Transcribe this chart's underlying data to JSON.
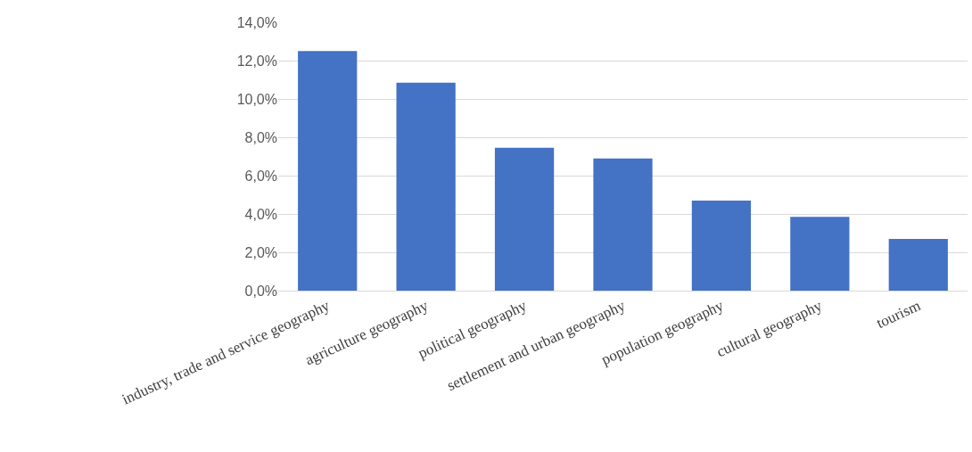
{
  "chart_data": {
    "type": "bar",
    "categories": [
      "industry, trade and service geography",
      "agriculture geography",
      "political geography",
      "settlement and urban geography",
      "population geography",
      "cultural geography",
      "tourism"
    ],
    "values": [
      12.5,
      10.85,
      7.45,
      6.9,
      4.7,
      3.85,
      2.7
    ],
    "color": "#4472c4",
    "ylim": [
      0,
      14
    ],
    "yticks": [
      {
        "value": 0,
        "label": "0,0%"
      },
      {
        "value": 2,
        "label": "2,0%"
      },
      {
        "value": 4,
        "label": "4,0%"
      },
      {
        "value": 6,
        "label": "6,0%"
      },
      {
        "value": 8,
        "label": "8,0%"
      },
      {
        "value": 10,
        "label": "10,0%"
      },
      {
        "value": 12,
        "label": "12,0%"
      },
      {
        "value": 14,
        "label": "14,0%"
      }
    ],
    "grid": "y"
  }
}
